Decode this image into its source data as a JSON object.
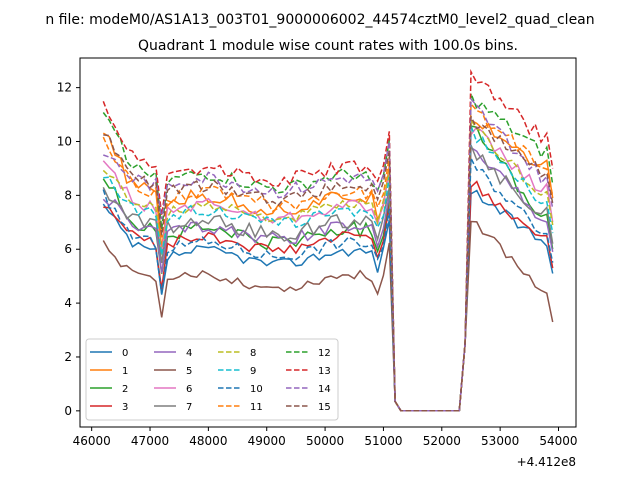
{
  "chart_data": {
    "type": "line",
    "suptitle": "n file: modeM0/AS1A13_003T01_9000006002_44574cztM0_level2_quad_clean",
    "title": "Quadrant 1 module wise count rates with 100.0s bins.",
    "offset_label": "+4.412e8",
    "xlabel": "",
    "ylabel": "",
    "xlim": [
      45800,
      54300
    ],
    "ylim": [
      -0.6,
      13.1
    ],
    "x_ticks": [
      {
        "value": 46000,
        "label": "46000"
      },
      {
        "value": 47000,
        "label": "47000"
      },
      {
        "value": 48000,
        "label": "48000"
      },
      {
        "value": 49000,
        "label": "49000"
      },
      {
        "value": 50000,
        "label": "50000"
      },
      {
        "value": 51000,
        "label": "51000"
      },
      {
        "value": 52000,
        "label": "52000"
      },
      {
        "value": 53000,
        "label": "53000"
      },
      {
        "value": 54000,
        "label": "54000"
      }
    ],
    "y_ticks": [
      {
        "value": 0,
        "label": "0"
      },
      {
        "value": 2,
        "label": "2"
      },
      {
        "value": 4,
        "label": "4"
      },
      {
        "value": 6,
        "label": "6"
      },
      {
        "value": 8,
        "label": "8"
      },
      {
        "value": 10,
        "label": "10"
      },
      {
        "value": 12,
        "label": "12"
      }
    ],
    "legend_position": "lower-left",
    "legend_columns": 4,
    "grid": false,
    "series": [
      {
        "name": "0",
        "color": "#1f77b4",
        "dash": "solid",
        "start": 7.6,
        "plateau": 5.5,
        "peak": 8.2,
        "after": 6.3,
        "noise": 0.2
      },
      {
        "name": "1",
        "color": "#ff7f0e",
        "dash": "solid",
        "start": 10.3,
        "plateau": 7.5,
        "peak": 11.0,
        "after": 9.1,
        "noise": 0.28
      },
      {
        "name": "2",
        "color": "#2ca02c",
        "dash": "solid",
        "start": 8.7,
        "plateau": 6.3,
        "peak": 10.8,
        "after": 7.2,
        "noise": 0.28
      },
      {
        "name": "3",
        "color": "#d62728",
        "dash": "solid",
        "start": 7.7,
        "plateau": 6.0,
        "peak": 8.5,
        "after": 6.5,
        "noise": 0.22
      },
      {
        "name": "4",
        "color": "#9467bd",
        "dash": "solid",
        "start": 8.1,
        "plateau": 6.4,
        "peak": 10.0,
        "after": 7.1,
        "noise": 0.25
      },
      {
        "name": "5",
        "color": "#8c564b",
        "dash": "solid",
        "start": 6.2,
        "plateau": 4.6,
        "peak": 7.2,
        "after": 4.5,
        "noise": 0.18
      },
      {
        "name": "6",
        "color": "#e377c2",
        "dash": "solid",
        "start": 9.2,
        "plateau": 7.2,
        "peak": 10.5,
        "after": 8.2,
        "noise": 0.25
      },
      {
        "name": "7",
        "color": "#7f7f7f",
        "dash": "solid",
        "start": 8.3,
        "plateau": 6.6,
        "peak": 9.6,
        "after": 7.4,
        "noise": 0.28
      },
      {
        "name": "8",
        "color": "#bcbd22",
        "dash": "dashed",
        "start": 9.0,
        "plateau": 7.2,
        "peak": 10.6,
        "after": 8.1,
        "noise": 0.22
      },
      {
        "name": "9",
        "color": "#17becf",
        "dash": "dashed",
        "start": 8.8,
        "plateau": 7.0,
        "peak": 10.4,
        "after": 7.8,
        "noise": 0.22
      },
      {
        "name": "10",
        "color": "#1f77b4",
        "dash": "dashed",
        "start": 8.0,
        "plateau": 5.8,
        "peak": 9.2,
        "after": 6.7,
        "noise": 0.22
      },
      {
        "name": "11",
        "color": "#ff7f0e",
        "dash": "dashed",
        "start": 10.0,
        "plateau": 7.7,
        "peak": 11.2,
        "after": 9.2,
        "noise": 0.25
      },
      {
        "name": "12",
        "color": "#2ca02c",
        "dash": "dashed",
        "start": 11.0,
        "plateau": 8.3,
        "peak": 11.6,
        "after": 9.6,
        "noise": 0.25
      },
      {
        "name": "13",
        "color": "#d62728",
        "dash": "dashed",
        "start": 11.5,
        "plateau": 8.6,
        "peak": 12.4,
        "after": 10.2,
        "noise": 0.28
      },
      {
        "name": "14",
        "color": "#9467bd",
        "dash": "dashed",
        "start": 9.6,
        "plateau": 8.2,
        "peak": 11.4,
        "after": 8.7,
        "noise": 0.28
      },
      {
        "name": "15",
        "color": "#8c564b",
        "dash": "dashed",
        "start": 10.4,
        "plateau": 7.9,
        "peak": 10.8,
        "after": 8.9,
        "noise": 0.22
      }
    ]
  }
}
